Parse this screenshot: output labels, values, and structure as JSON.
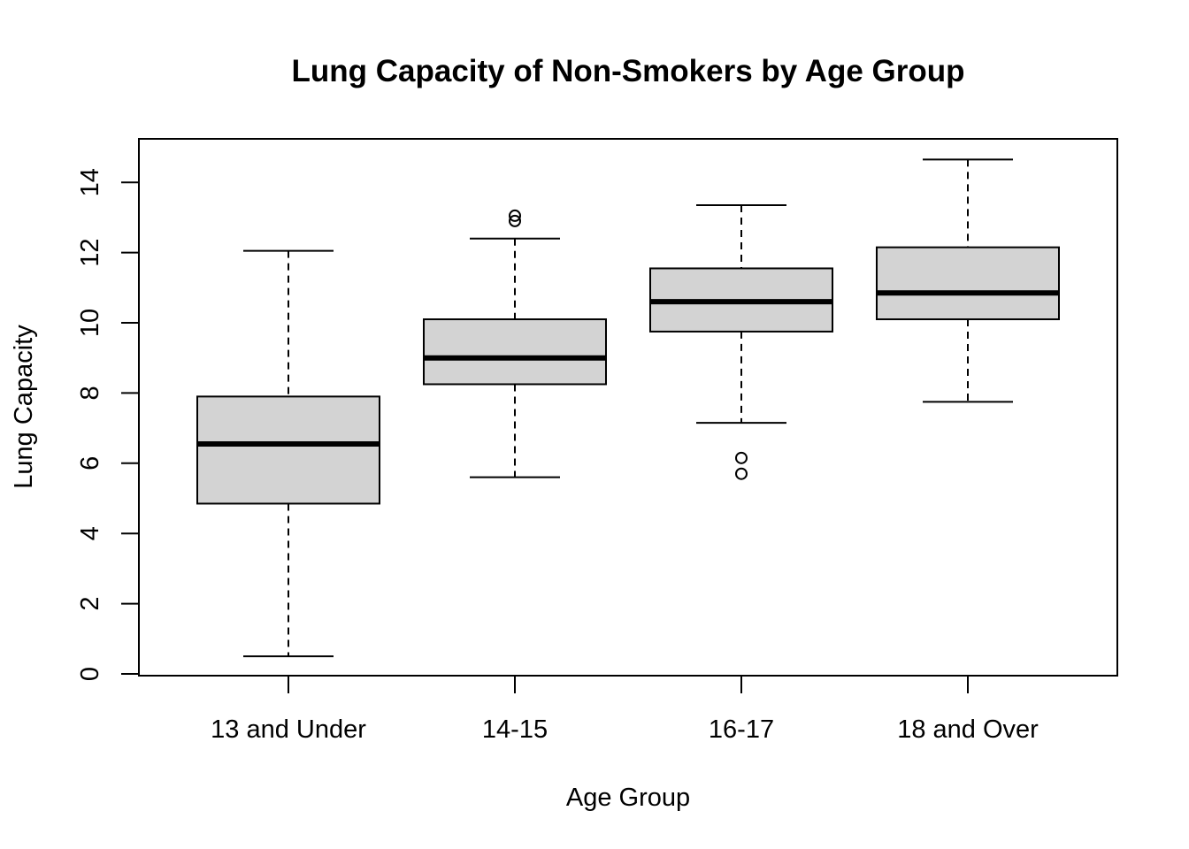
{
  "chart_data": {
    "type": "box",
    "title": "Lung Capacity of Non-Smokers by Age Group",
    "xlabel": "Age Group",
    "ylabel": "Lung Capacity",
    "ylim": [
      0,
      15
    ],
    "yticks": [
      0,
      2,
      4,
      6,
      8,
      10,
      12,
      14
    ],
    "grid": false,
    "box_color": "#d3d3d3",
    "categories": [
      "13 and Under",
      "14-15",
      "16-17",
      "18 and Over"
    ],
    "boxes": [
      {
        "category": "13 and Under",
        "whisker_low": 0.5,
        "q1": 4.85,
        "median": 6.55,
        "q3": 7.9,
        "whisker_high": 12.05,
        "outliers": []
      },
      {
        "category": "14-15",
        "whisker_low": 5.6,
        "q1": 8.25,
        "median": 9.0,
        "q3": 10.1,
        "whisker_high": 12.4,
        "outliers": [
          12.9,
          13.05
        ]
      },
      {
        "category": "16-17",
        "whisker_low": 7.15,
        "q1": 9.75,
        "median": 10.6,
        "q3": 11.55,
        "whisker_high": 13.35,
        "outliers": [
          5.7,
          6.15
        ]
      },
      {
        "category": "18 and Over",
        "whisker_low": 7.75,
        "q1": 10.1,
        "median": 10.85,
        "q3": 12.15,
        "whisker_high": 14.65,
        "outliers": []
      }
    ]
  }
}
